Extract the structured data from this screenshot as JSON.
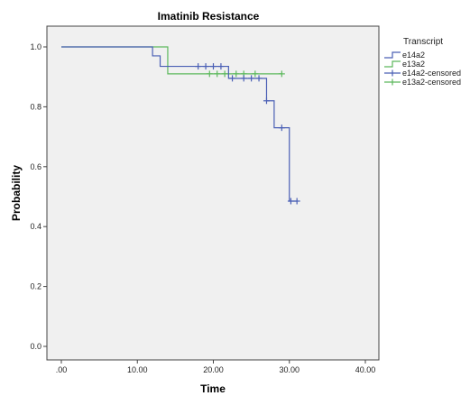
{
  "chart_data": {
    "type": "line",
    "subtype": "kaplan-meier",
    "title": "Imatinib Resistance",
    "xlabel": "Time",
    "ylabel": "Probability",
    "xlim": [
      0,
      40
    ],
    "ylim": [
      0,
      1
    ],
    "x_ticks": [
      ".00",
      "10.00",
      "20.00",
      "30.00",
      "40.00"
    ],
    "y_ticks": [
      "0.0",
      "0.2",
      "0.4",
      "0.6",
      "0.8",
      "1.0"
    ],
    "x_tick_values": [
      0,
      10,
      20,
      30,
      40
    ],
    "y_tick_values": [
      0,
      0.2,
      0.4,
      0.6,
      0.8,
      1.0
    ],
    "legend": {
      "title": "Transcript",
      "placement": "right",
      "entries": [
        "e14a2",
        "e13a2",
        "e14a2-censored",
        "e13a2-censored"
      ]
    },
    "colors": {
      "e14a2": "#4a5fb5",
      "e13a2": "#5cb85c",
      "plot_background": "#f0f0f0"
    },
    "series": [
      {
        "name": "e14a2",
        "steps": [
          {
            "x": 0,
            "y": 1.0
          },
          {
            "x": 12,
            "y": 0.97
          },
          {
            "x": 13,
            "y": 0.935
          },
          {
            "x": 22,
            "y": 0.895
          },
          {
            "x": 27,
            "y": 0.82
          },
          {
            "x": 28,
            "y": 0.73
          },
          {
            "x": 30,
            "y": 0.485
          }
        ],
        "end_x": 31,
        "censored": [
          {
            "x": 18,
            "y": 0.935
          },
          {
            "x": 19,
            "y": 0.935
          },
          {
            "x": 20,
            "y": 0.935
          },
          {
            "x": 21,
            "y": 0.935
          },
          {
            "x": 22.5,
            "y": 0.895
          },
          {
            "x": 24,
            "y": 0.895
          },
          {
            "x": 25,
            "y": 0.895
          },
          {
            "x": 26,
            "y": 0.895
          },
          {
            "x": 27,
            "y": 0.82
          },
          {
            "x": 29,
            "y": 0.73
          },
          {
            "x": 30.2,
            "y": 0.485
          },
          {
            "x": 31,
            "y": 0.485
          }
        ]
      },
      {
        "name": "e13a2",
        "steps": [
          {
            "x": 0,
            "y": 1.0
          },
          {
            "x": 14,
            "y": 0.91
          }
        ],
        "end_x": 29,
        "censored": [
          {
            "x": 19.5,
            "y": 0.91
          },
          {
            "x": 20.5,
            "y": 0.91
          },
          {
            "x": 21.5,
            "y": 0.91
          },
          {
            "x": 23,
            "y": 0.91
          },
          {
            "x": 24,
            "y": 0.91
          },
          {
            "x": 25.5,
            "y": 0.91
          },
          {
            "x": 29,
            "y": 0.91
          }
        ]
      }
    ]
  }
}
